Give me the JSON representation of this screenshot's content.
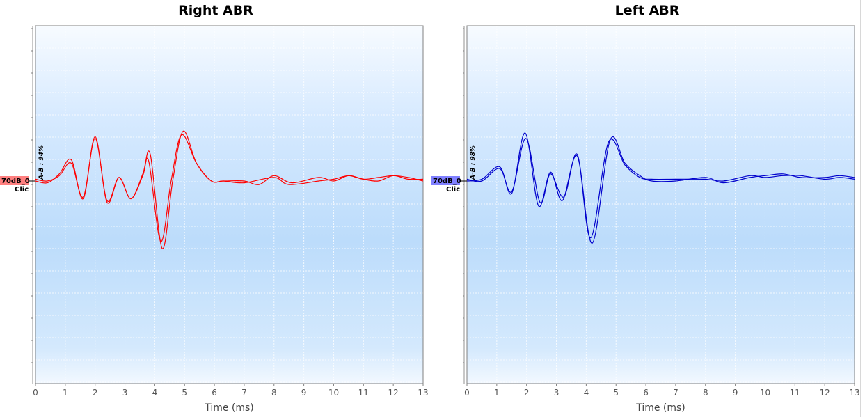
{
  "chart_data": [
    {
      "type": "line",
      "title": "Right ABR",
      "xlabel": "Time (ms)",
      "ylabel": "",
      "xlim": [
        0,
        13
      ],
      "x_ticks": [
        "0",
        "1",
        "2",
        "3",
        "4",
        "5",
        "6",
        "7",
        "8",
        "9",
        "10",
        "11",
        "12",
        "13"
      ],
      "ylim": [
        -1,
        1
      ],
      "grid": true,
      "trace_color": "#ff0000",
      "level_badge": "70dB_0",
      "stimulus": "Clic",
      "badge_color": "#ff8080",
      "ab_label": "A-B : 94%",
      "series": [
        {
          "x": [
            0,
            0.4,
            0.8,
            1.2,
            1.6,
            2.0,
            2.4,
            2.8,
            3.2,
            3.6,
            3.85,
            4.25,
            4.6,
            4.95,
            5.4,
            5.9,
            6.3,
            7.0,
            8.0,
            8.5,
            9.5,
            10.0,
            10.5,
            11.0,
            11.5,
            12.0,
            12.5,
            13.0
          ],
          "y": [
            0,
            -0.01,
            0.04,
            0.12,
            -0.1,
            0.25,
            -0.12,
            0.02,
            -0.1,
            0.04,
            0.15,
            -0.38,
            0.0,
            0.28,
            0.1,
            0.0,
            0.0,
            -0.01,
            0.02,
            -0.02,
            0.0,
            0.01,
            0.03,
            0.01,
            0.02,
            0.03,
            0.02,
            0.0
          ]
        },
        {
          "x": [
            0,
            0.4,
            0.8,
            1.2,
            1.6,
            2.0,
            2.4,
            2.8,
            3.2,
            3.6,
            3.8,
            4.2,
            4.55,
            4.9,
            5.4,
            5.9,
            6.3,
            7.0,
            7.5,
            8.0,
            8.6,
            9.5,
            10.0,
            10.5,
            11.0,
            11.5,
            12.0,
            12.5,
            13.0
          ],
          "y": [
            0.01,
            0.0,
            0.03,
            0.1,
            -0.09,
            0.24,
            -0.11,
            0.02,
            -0.1,
            0.03,
            0.11,
            -0.34,
            0.0,
            0.26,
            0.1,
            0.0,
            0.0,
            0.0,
            -0.02,
            0.03,
            -0.01,
            0.02,
            0.0,
            0.03,
            0.01,
            0.0,
            0.03,
            0.01,
            0.01
          ]
        }
      ]
    },
    {
      "type": "line",
      "title": "Left ABR",
      "xlabel": "Time (ms)",
      "ylabel": "",
      "xlim": [
        0,
        13
      ],
      "x_ticks": [
        "0",
        "1",
        "2",
        "3",
        "4",
        "5",
        "6",
        "7",
        "8",
        "9",
        "10",
        "11",
        "12",
        "13"
      ],
      "ylim": [
        -1,
        1
      ],
      "grid": true,
      "trace_color": "#0000cc",
      "level_badge": "70dB_0",
      "stimulus": "Clic",
      "badge_color": "#8080ff",
      "ab_label": "A-B : 98%",
      "series": [
        {
          "x": [
            0,
            0.5,
            1.1,
            1.5,
            1.95,
            2.4,
            2.8,
            3.2,
            3.7,
            4.2,
            4.8,
            5.3,
            5.8,
            6.2,
            7.0,
            8.0,
            8.6,
            9.5,
            10.0,
            10.6,
            11.2,
            12.0,
            12.5,
            13.0
          ],
          "y": [
            0,
            0.01,
            0.08,
            -0.07,
            0.27,
            -0.14,
            0.05,
            -0.11,
            0.14,
            -0.35,
            0.23,
            0.1,
            0.03,
            0.0,
            0.0,
            0.02,
            -0.01,
            0.02,
            0.03,
            0.04,
            0.02,
            0.02,
            0.03,
            0.02
          ]
        },
        {
          "x": [
            0,
            0.5,
            1.1,
            1.5,
            1.98,
            2.45,
            2.8,
            3.25,
            3.7,
            4.15,
            4.75,
            5.3,
            5.8,
            6.2,
            7.0,
            8.0,
            8.6,
            9.5,
            10.0,
            10.6,
            11.2,
            12.0,
            12.5,
            13.0
          ],
          "y": [
            0.01,
            0.0,
            0.07,
            -0.06,
            0.24,
            -0.12,
            0.04,
            -0.09,
            0.15,
            -0.32,
            0.22,
            0.09,
            0.02,
            0.01,
            0.01,
            0.01,
            0.0,
            0.03,
            0.02,
            0.03,
            0.03,
            0.01,
            0.02,
            0.01
          ]
        }
      ]
    }
  ]
}
